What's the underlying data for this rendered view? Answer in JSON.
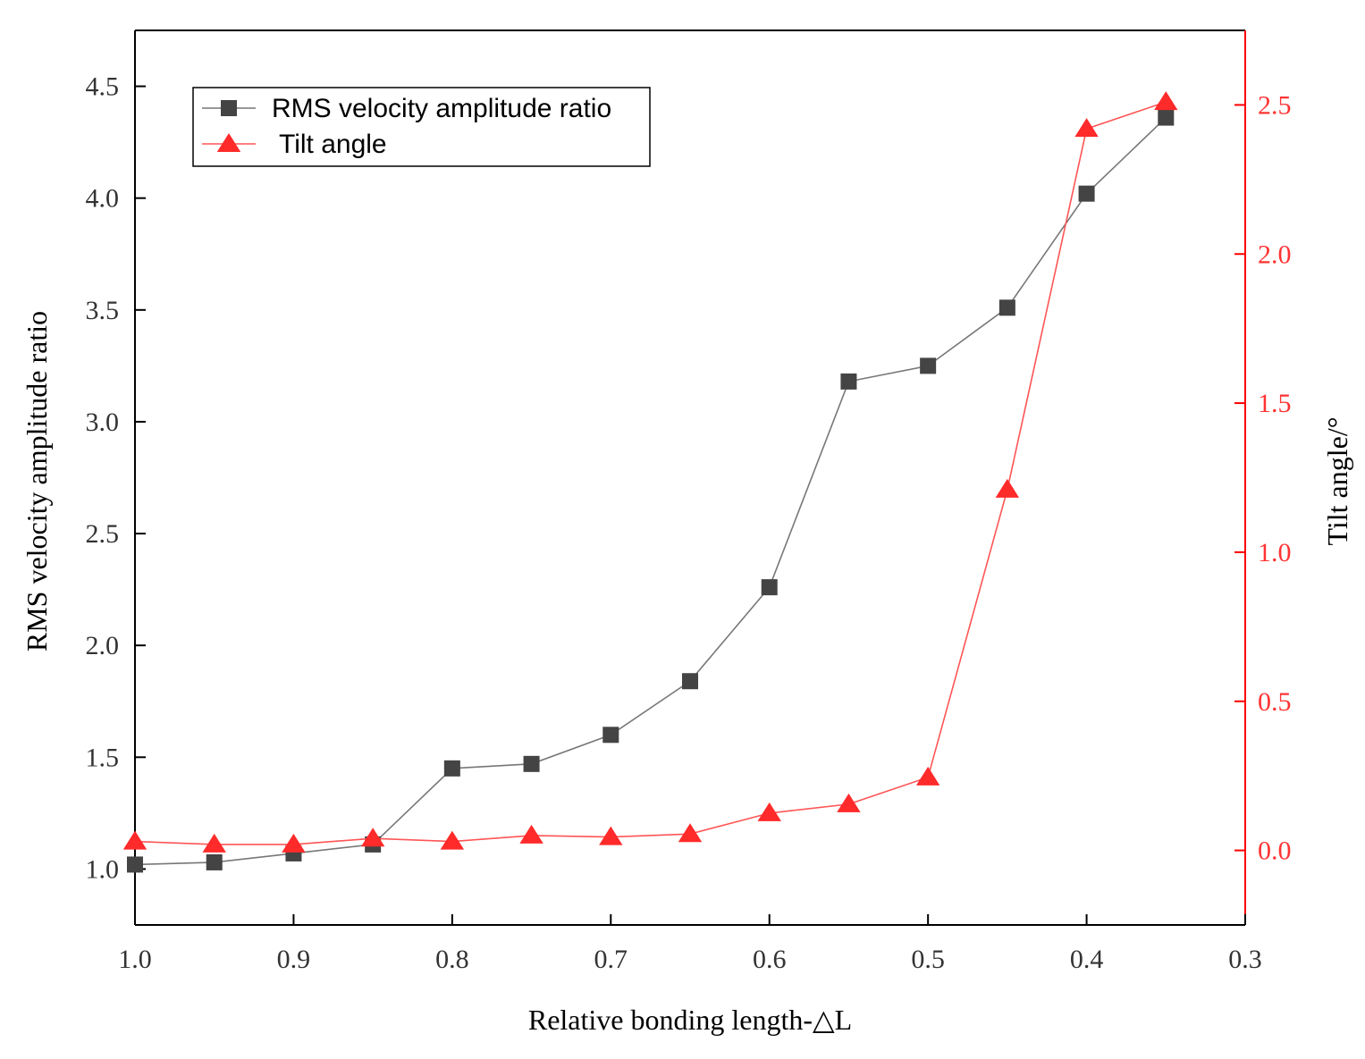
{
  "chart_data": {
    "type": "line",
    "x": [
      1.0,
      0.95,
      0.9,
      0.85,
      0.8,
      0.75,
      0.7,
      0.65,
      0.6,
      0.55,
      0.5,
      0.45,
      0.4,
      0.35
    ],
    "xlabel": "Relative bonding length-△L",
    "xlim": [
      1.0,
      0.3
    ],
    "xticks": [
      1.0,
      0.9,
      0.8,
      0.7,
      0.6,
      0.5,
      0.4,
      0.3
    ],
    "xtick_labels": [
      "1.0",
      "0.9",
      "0.8",
      "0.7",
      "0.6",
      "0.5",
      "0.4",
      "0.3"
    ],
    "ylabel": "RMS velocity amplitude ratio",
    "ylim": [
      0.75,
      4.75
    ],
    "yticks": [
      1.0,
      1.5,
      2.0,
      2.5,
      3.0,
      3.5,
      4.0,
      4.5
    ],
    "ytick_labels": [
      "1.0",
      "1.5",
      "2.0",
      "2.5",
      "3.0",
      "3.5",
      "4.0",
      "4.5"
    ],
    "y2label": "Tilt angle/°",
    "y2lim": [
      -0.25,
      2.75
    ],
    "y2ticks": [
      0.0,
      0.5,
      1.0,
      1.5,
      2.0,
      2.5
    ],
    "y2tick_labels": [
      "0.0",
      "0.5",
      "1.0",
      "1.5",
      "2.0",
      "2.5"
    ],
    "series": [
      {
        "name": "RMS velocity amplitude ratio",
        "axis": "left",
        "color": "#444444",
        "line_color": "#777777",
        "marker": "square",
        "values": [
          1.02,
          1.03,
          1.07,
          1.11,
          1.45,
          1.47,
          1.6,
          1.84,
          2.26,
          3.18,
          3.25,
          3.51,
          4.02,
          4.36
        ]
      },
      {
        "name": "Tilt angle",
        "axis": "right",
        "color": "#ff2a2a",
        "line_color": "#ff5555",
        "marker": "triangle",
        "values": [
          0.03,
          0.02,
          0.02,
          0.04,
          0.03,
          0.05,
          0.045,
          0.055,
          0.125,
          0.155,
          0.245,
          1.21,
          2.42,
          2.51
        ]
      }
    ],
    "legend": {
      "position": "top-left",
      "entries": [
        "RMS velocity amplitude ratio",
        "Tilt angle"
      ]
    }
  }
}
